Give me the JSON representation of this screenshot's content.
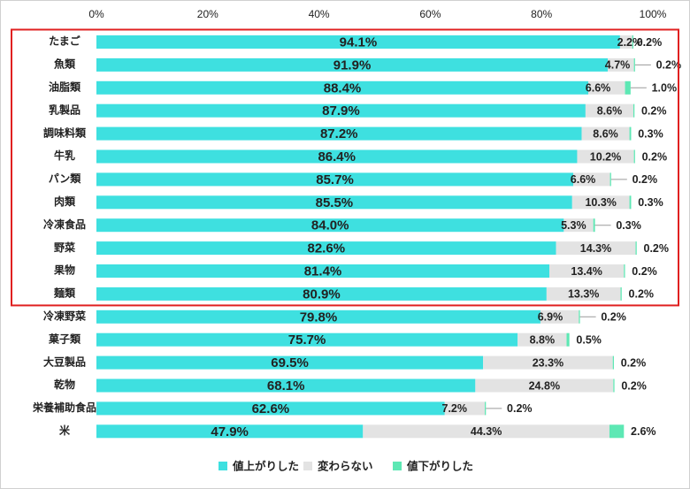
{
  "chart_data": {
    "type": "bar",
    "orientation": "horizontal",
    "stacked": true,
    "xlim": [
      0,
      100
    ],
    "x_ticks": [
      "0%",
      "20%",
      "40%",
      "60%",
      "80%",
      "100%"
    ],
    "categories": [
      "たまご",
      "魚類",
      "油脂類",
      "乳製品",
      "調味料類",
      "牛乳",
      "パン類",
      "肉類",
      "冷凍食品",
      "野菜",
      "果物",
      "麺類",
      "冷凍野菜",
      "菓子類",
      "大豆製品",
      "乾物",
      "栄養補助食品",
      "米"
    ],
    "series": [
      {
        "name": "値上がりした",
        "color": "#3ee0e0",
        "values": [
          94.1,
          91.9,
          88.4,
          87.9,
          87.2,
          86.4,
          85.7,
          85.5,
          84.0,
          82.6,
          81.4,
          80.9,
          79.8,
          75.7,
          69.5,
          68.1,
          62.6,
          47.9
        ],
        "labels": [
          "94.1%",
          "91.9%",
          "88.4%",
          "87.9%",
          "87.2%",
          "86.4%",
          "85.7%",
          "85.5%",
          "84.0%",
          "82.6%",
          "81.4%",
          "80.9%",
          "79.8%",
          "75.7%",
          "69.5%",
          "68.1%",
          "62.6%",
          "47.9%"
        ]
      },
      {
        "name": "変わらない",
        "color": "#e3e3e3",
        "values": [
          2.2,
          4.7,
          6.6,
          8.6,
          8.6,
          10.2,
          6.6,
          10.3,
          5.3,
          14.3,
          13.4,
          13.3,
          6.9,
          8.8,
          23.3,
          24.8,
          7.2,
          44.3
        ],
        "labels": [
          "2.2%",
          "4.7%",
          "6.6%",
          "8.6%",
          "8.6%",
          "10.2%",
          "6.6%",
          "10.3%",
          "5.3%",
          "14.3%",
          "13.4%",
          "13.3%",
          "6.9%",
          "8.8%",
          "23.3%",
          "24.8%",
          "7.2%",
          "44.3%"
        ]
      },
      {
        "name": "値下がりした",
        "color": "#5de8b4",
        "values": [
          0.2,
          0.2,
          1.0,
          0.2,
          0.3,
          0.2,
          0.2,
          0.3,
          0.3,
          0.2,
          0.2,
          0.2,
          0.2,
          0.5,
          0.2,
          0.2,
          0.2,
          2.6
        ],
        "labels": [
          "0.2%",
          "0.2%",
          "1.0%",
          "0.2%",
          "0.3%",
          "0.2%",
          "0.2%",
          "0.3%",
          "0.3%",
          "0.2%",
          "0.2%",
          "0.2%",
          "0.2%",
          "0.5%",
          "0.2%",
          "0.2%",
          "0.2%",
          "2.6%"
        ]
      }
    ],
    "highlight": {
      "from_category": "たまご",
      "to_category": "麺類",
      "color": "#e02020"
    },
    "legend": "bottom-center",
    "grid": false,
    "title": "",
    "xlabel": "",
    "ylabel": ""
  }
}
